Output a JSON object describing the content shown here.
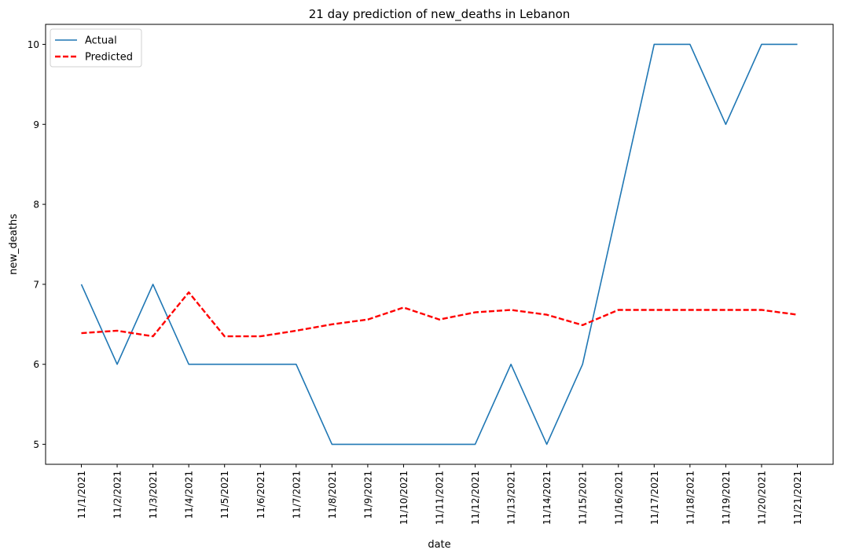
{
  "chart_data": {
    "type": "line",
    "title": "21 day prediction of new_deaths in Lebanon",
    "xlabel": "date",
    "ylabel": "new_deaths",
    "ylim": [
      4.75,
      10.25
    ],
    "yticks": [
      5,
      6,
      7,
      8,
      9,
      10
    ],
    "grid": false,
    "legend_position": "top-left",
    "categories": [
      "11/1/2021",
      "11/2/2021",
      "11/3/2021",
      "11/4/2021",
      "11/5/2021",
      "11/6/2021",
      "11/7/2021",
      "11/8/2021",
      "11/9/2021",
      "11/10/2021",
      "11/11/2021",
      "11/12/2021",
      "11/13/2021",
      "11/14/2021",
      "11/15/2021",
      "11/16/2021",
      "11/17/2021",
      "11/18/2021",
      "11/19/2021",
      "11/20/2021",
      "11/21/2021"
    ],
    "series": [
      {
        "name": "Actual",
        "color": "#1f77b4",
        "style": "solid",
        "values": [
          7,
          6,
          7,
          6,
          6,
          6,
          6,
          5,
          5,
          5,
          5,
          5,
          6,
          5,
          6,
          8,
          10,
          10,
          9,
          10,
          10
        ]
      },
      {
        "name": "Predicted",
        "color": "#ff0000",
        "style": "dashed",
        "values": [
          6.39,
          6.42,
          6.35,
          6.9,
          6.35,
          6.35,
          6.42,
          6.5,
          6.56,
          6.71,
          6.56,
          6.65,
          6.68,
          6.62,
          6.49,
          6.68,
          6.68,
          6.68,
          6.68,
          6.68,
          6.62
        ]
      }
    ]
  }
}
